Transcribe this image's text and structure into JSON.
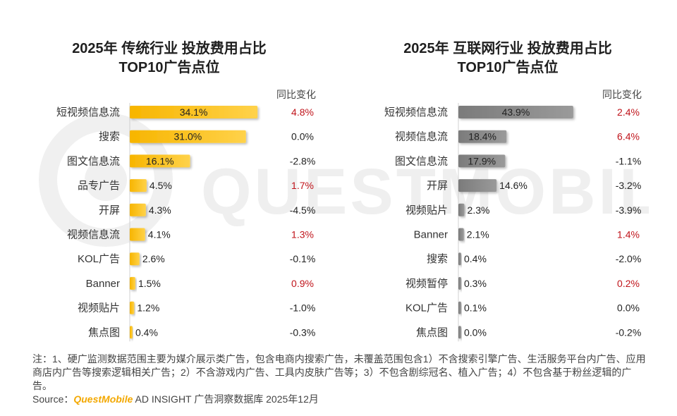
{
  "watermark": "QUESTMOBILE",
  "chart_data": [
    {
      "type": "bar",
      "orientation": "horizontal",
      "title_line1": "2025年 传统行业 投放费用占比",
      "title_line2": "TOP10广告点位",
      "change_header": "同比变化",
      "categories": [
        "短视频信息流",
        "搜索",
        "图文信息流",
        "品专广告",
        "开屏",
        "视频信息流",
        "KOL广告",
        "Banner",
        "视频贴片",
        "焦点图"
      ],
      "values": [
        34.1,
        31.0,
        16.1,
        4.5,
        4.3,
        4.1,
        2.6,
        1.5,
        1.2,
        0.4
      ],
      "value_labels": [
        "34.1%",
        "31.0%",
        "16.1%",
        "4.5%",
        "4.3%",
        "4.1%",
        "2.6%",
        "1.5%",
        "1.2%",
        "0.4%"
      ],
      "yoy_change": [
        "4.8%",
        "0.0%",
        "-2.8%",
        "1.7%",
        "-4.5%",
        "1.3%",
        "-0.1%",
        "0.9%",
        "-1.0%",
        "-0.3%"
      ],
      "yoy_highlight": [
        true,
        false,
        false,
        true,
        false,
        true,
        false,
        true,
        false,
        false
      ],
      "xlim": [
        0,
        35
      ],
      "bar_color": "#f7b500",
      "highlight_color": "#c0141b"
    },
    {
      "type": "bar",
      "orientation": "horizontal",
      "title_line1": "2025年 互联网行业 投放费用占比",
      "title_line2": "TOP10广告点位",
      "change_header": "同比变化",
      "categories": [
        "短视频信息流",
        "视频信息流",
        "图文信息流",
        "开屏",
        "视频贴片",
        "Banner",
        "搜索",
        "视频暂停",
        "KOL广告",
        "焦点图"
      ],
      "values": [
        43.9,
        18.4,
        17.9,
        14.6,
        2.3,
        2.1,
        0.4,
        0.3,
        0.1,
        0.0
      ],
      "value_labels": [
        "43.9%",
        "18.4%",
        "17.9%",
        "14.6%",
        "2.3%",
        "2.1%",
        "0.4%",
        "0.3%",
        "0.1%",
        "0.0%"
      ],
      "yoy_change": [
        "2.4%",
        "6.4%",
        "-1.1%",
        "-3.2%",
        "-3.9%",
        "1.4%",
        "-2.0%",
        "0.2%",
        "0.0%",
        "-0.2%"
      ],
      "yoy_highlight": [
        true,
        true,
        false,
        false,
        false,
        true,
        false,
        true,
        false,
        false
      ],
      "xlim": [
        0,
        45
      ],
      "bar_color": "#7b7b7b",
      "highlight_color": "#c0141b"
    }
  ],
  "footnote": "注：1、硬广监测数据范围主要为媒介展示类广告，包含电商内搜索广告，未覆盖范围包含1）不含搜索引擎广告、生活服务平台内广告、应用商店内广告等搜索逻辑相关广告；2）不含游戏内广告、工具内皮肤广告等；3）不包含剧综冠名、植入广告；4）不包含基于粉丝逻辑的广告。",
  "source": {
    "prefix": "Source：",
    "brand": "QuestMobile",
    "rest": " AD INSIGHT 广告洞察数据库 2025年12月"
  }
}
